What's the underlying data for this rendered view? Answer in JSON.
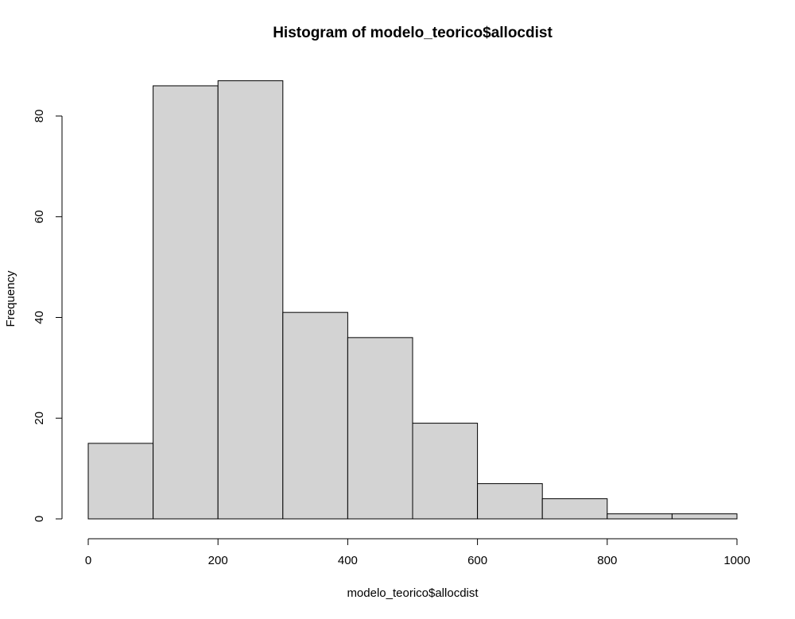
{
  "chart_data": {
    "type": "bar",
    "title": "Histogram of modelo_teorico$allocdist",
    "xlabel": "modelo_teorico$allocdist",
    "ylabel": "Frequency",
    "bins": [
      {
        "from": 0,
        "to": 100,
        "count": 15
      },
      {
        "from": 100,
        "to": 200,
        "count": 86
      },
      {
        "from": 200,
        "to": 300,
        "count": 87
      },
      {
        "from": 300,
        "to": 400,
        "count": 41
      },
      {
        "from": 400,
        "to": 500,
        "count": 36
      },
      {
        "from": 500,
        "to": 600,
        "count": 19
      },
      {
        "from": 600,
        "to": 700,
        "count": 7
      },
      {
        "from": 700,
        "to": 800,
        "count": 4
      },
      {
        "from": 800,
        "to": 900,
        "count": 1
      },
      {
        "from": 900,
        "to": 1000,
        "count": 1
      }
    ],
    "xlim": [
      0,
      1000
    ],
    "ylim": [
      0,
      87
    ],
    "x_ticks": [
      0,
      200,
      400,
      600,
      800,
      1000
    ],
    "y_ticks": [
      0,
      20,
      40,
      60,
      80
    ],
    "grid": false,
    "colors": {
      "bar_fill": "#d3d3d3",
      "bar_stroke": "#000000"
    }
  }
}
